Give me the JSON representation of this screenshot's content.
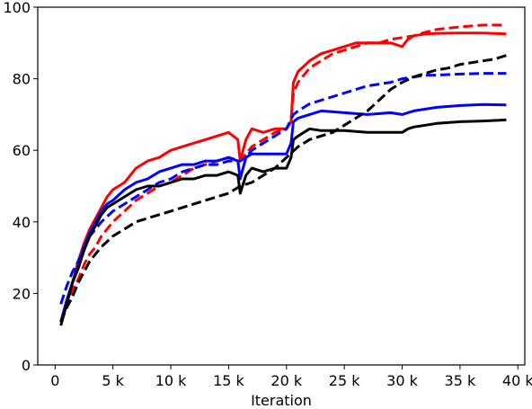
{
  "chart_data": {
    "type": "line",
    "xlabel": "Iteration",
    "ylabel": "",
    "xlim": [
      -1500,
      40600
    ],
    "ylim": [
      0,
      100
    ],
    "grid": false,
    "x_ticks": [
      0,
      5000,
      10000,
      15000,
      20000,
      25000,
      30000,
      35000,
      40000
    ],
    "x_tick_labels": [
      "0",
      "5 k",
      "10 k",
      "15 k",
      "20 k",
      "25 k",
      "30 k",
      "35 k",
      "40 k"
    ],
    "y_ticks": [
      0,
      20,
      40,
      60,
      80,
      100
    ],
    "y_tick_labels": [
      "0",
      "20",
      "40",
      "60",
      "80",
      "100"
    ],
    "series": [
      {
        "color": "#ff0000",
        "style": "solid",
        "x": [
          500,
          1000,
          1500,
          2000,
          2500,
          3000,
          3500,
          4000,
          4500,
          5000,
          6000,
          7000,
          8000,
          9000,
          10000,
          11000,
          12000,
          13000,
          14000,
          15000,
          15800,
          16000,
          16500,
          17000,
          18000,
          19000,
          20000,
          20400,
          20600,
          21000,
          22000,
          23000,
          24000,
          25000,
          26000,
          27000,
          28000,
          29000,
          30000,
          30500,
          31000,
          32000,
          33000,
          35000,
          37000,
          39000
        ],
        "y": [
          12,
          18,
          23,
          29,
          34,
          38,
          41,
          44,
          47,
          49,
          51,
          55,
          57,
          58,
          60,
          61,
          62,
          63,
          64,
          65,
          63,
          57,
          63,
          66,
          65,
          66,
          66,
          68,
          79,
          82,
          85,
          87,
          88,
          89,
          90,
          90,
          90,
          90,
          89,
          91,
          92,
          92.5,
          92.7,
          92.8,
          92.8,
          92.5
        ]
      },
      {
        "color": "#ff0000",
        "style": "dashed",
        "x": [
          500,
          1000,
          1500,
          2000,
          2500,
          3000,
          3500,
          4000,
          5000,
          6000,
          7000,
          8000,
          9000,
          10000,
          11000,
          12000,
          13000,
          14000,
          15000,
          16000,
          16500,
          17000,
          18000,
          19000,
          20000,
          20400,
          20600,
          21000,
          22000,
          23000,
          24000,
          25000,
          26000,
          27000,
          28000,
          29000,
          30000,
          31000,
          32000,
          33000,
          35000,
          37000,
          39000
        ],
        "y": [
          12,
          17,
          21,
          24,
          28,
          31,
          33,
          36,
          40,
          43,
          46,
          48,
          50,
          51,
          53,
          55,
          56,
          57,
          58,
          57,
          59,
          61,
          63,
          65,
          66,
          68,
          76,
          79,
          83,
          85,
          87,
          88,
          89,
          90,
          90,
          91,
          91.5,
          92,
          93,
          93.8,
          94.5,
          95,
          95
        ]
      },
      {
        "color": "#0000ff",
        "style": "solid",
        "x": [
          500,
          1000,
          1500,
          2000,
          2500,
          3000,
          3500,
          4000,
          4500,
          5000,
          6000,
          7000,
          8000,
          9000,
          10000,
          11000,
          12000,
          13000,
          14000,
          15000,
          15800,
          16000,
          16500,
          17000,
          18000,
          19000,
          20000,
          20400,
          20600,
          21000,
          22000,
          23000,
          25000,
          27000,
          29000,
          30000,
          31000,
          33000,
          35000,
          37000,
          39000
        ],
        "y": [
          12,
          18,
          23,
          28,
          33,
          37,
          40,
          43,
          45,
          46,
          49,
          51,
          52,
          54,
          55,
          56,
          56,
          57,
          57,
          58,
          57,
          52,
          58,
          59,
          59,
          59,
          59,
          62,
          68,
          69,
          70,
          71,
          70.5,
          70,
          70.5,
          70,
          71,
          72,
          72.5,
          72.8,
          72.7
        ]
      },
      {
        "color": "#0000ff",
        "style": "dashed",
        "x": [
          500,
          1000,
          1500,
          2000,
          2500,
          3000,
          3500,
          4000,
          5000,
          6000,
          7000,
          8000,
          9000,
          10000,
          11000,
          12000,
          13000,
          14000,
          15000,
          16000,
          16500,
          17000,
          18000,
          19000,
          20000,
          20600,
          21000,
          22000,
          23000,
          24000,
          25000,
          26000,
          27000,
          28000,
          29000,
          30000,
          31000,
          32000,
          33000,
          35000,
          37000,
          39000
        ],
        "y": [
          17,
          22,
          26,
          29,
          33,
          36,
          38,
          40,
          43,
          45,
          47,
          49,
          51,
          52,
          54,
          55,
          56,
          56,
          57,
          57,
          58,
          60,
          62,
          64,
          66,
          70,
          71,
          73,
          74,
          75,
          76,
          77,
          78,
          78.5,
          79,
          80,
          80.5,
          81,
          81,
          81.3,
          81.5,
          81.5
        ]
      },
      {
        "color": "#000000",
        "style": "solid",
        "x": [
          500,
          1000,
          1500,
          2000,
          2500,
          3000,
          3500,
          4000,
          4500,
          5000,
          6000,
          7000,
          8000,
          9000,
          10000,
          11000,
          12000,
          13000,
          14000,
          15000,
          15800,
          16000,
          16500,
          17000,
          18000,
          19000,
          20000,
          20400,
          20600,
          21000,
          22000,
          23000,
          25000,
          27000,
          29000,
          30000,
          30500,
          31000,
          33000,
          35000,
          37000,
          39000
        ],
        "y": [
          11,
          17,
          23,
          27,
          32,
          36,
          39,
          42,
          44,
          45,
          47,
          49,
          50,
          50,
          51,
          52,
          52,
          53,
          53,
          54,
          53,
          48,
          53,
          55,
          54,
          55,
          55,
          58,
          63,
          64,
          66,
          65.5,
          65.5,
          65,
          65,
          65,
          66,
          66.5,
          67.5,
          68,
          68.2,
          68.5
        ]
      },
      {
        "color": "#000000",
        "style": "dashed",
        "x": [
          500,
          1000,
          1500,
          2000,
          2500,
          3000,
          3500,
          4000,
          5000,
          6000,
          7000,
          8000,
          9000,
          10000,
          11000,
          12000,
          13000,
          14000,
          15000,
          16000,
          17000,
          18000,
          19000,
          20000,
          21000,
          22000,
          23000,
          24000,
          25000,
          26000,
          27000,
          28000,
          29000,
          30000,
          31000,
          32000,
          33000,
          34000,
          35000,
          36000,
          37000,
          38000,
          39000
        ],
        "y": [
          12,
          16,
          19,
          23,
          26,
          29,
          31,
          33,
          36,
          38,
          40,
          41,
          42,
          43,
          44,
          45,
          46,
          47,
          48,
          50,
          51,
          53,
          55,
          58,
          61,
          63,
          64,
          65,
          67,
          69,
          71,
          74,
          77,
          79,
          80.5,
          81.5,
          82.5,
          83,
          84,
          84.5,
          85,
          85.5,
          86.5
        ]
      }
    ]
  }
}
